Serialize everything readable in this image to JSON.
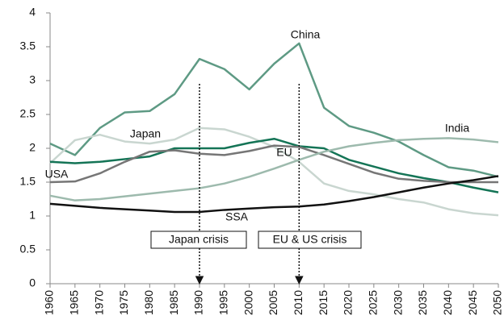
{
  "chart_data": {
    "type": "line",
    "x": [
      1960,
      1965,
      1970,
      1975,
      1980,
      1985,
      1990,
      1995,
      2000,
      2005,
      2010,
      2015,
      2020,
      2025,
      2030,
      2035,
      2040,
      2045,
      2050
    ],
    "xlim": [
      1960,
      2050
    ],
    "xticks": [
      1960,
      1965,
      1970,
      1975,
      1980,
      1985,
      1990,
      1995,
      2000,
      2005,
      2010,
      2015,
      2020,
      2025,
      2030,
      2035,
      2040,
      2045,
      2050
    ],
    "ylim": [
      0,
      4
    ],
    "yticks": [
      0,
      0.5,
      1,
      1.5,
      2,
      2.5,
      3,
      3.5,
      4
    ],
    "series": [
      {
        "name": "China",
        "color": "#5e9a84",
        "values": [
          2.07,
          1.9,
          2.3,
          2.53,
          2.55,
          2.8,
          3.32,
          3.17,
          2.87,
          3.25,
          3.55,
          2.6,
          2.33,
          2.23,
          2.1,
          1.9,
          1.72,
          1.67,
          1.58
        ]
      },
      {
        "name": "Japan",
        "color": "#c9d6d0",
        "values": [
          1.78,
          2.12,
          2.2,
          2.1,
          2.07,
          2.13,
          2.3,
          2.28,
          2.17,
          2.02,
          1.8,
          1.48,
          1.37,
          1.32,
          1.25,
          1.2,
          1.1,
          1.04,
          1.01
        ]
      },
      {
        "name": "EU",
        "color": "#147456",
        "values": [
          1.8,
          1.78,
          1.8,
          1.84,
          1.88,
          2.0,
          2.0,
          2.0,
          2.08,
          2.14,
          2.03,
          2.0,
          1.83,
          1.73,
          1.63,
          1.56,
          1.5,
          1.42,
          1.35
        ]
      },
      {
        "name": "USA",
        "color": "#767676",
        "values": [
          1.5,
          1.51,
          1.63,
          1.8,
          1.95,
          1.97,
          1.92,
          1.9,
          1.96,
          2.04,
          2.02,
          1.9,
          1.77,
          1.64,
          1.55,
          1.52,
          1.5,
          1.5,
          1.5
        ]
      },
      {
        "name": "India",
        "color": "#9dbaad",
        "values": [
          1.3,
          1.23,
          1.25,
          1.29,
          1.33,
          1.37,
          1.41,
          1.48,
          1.58,
          1.7,
          1.83,
          1.95,
          2.03,
          2.08,
          2.12,
          2.14,
          2.15,
          2.13,
          2.09
        ]
      },
      {
        "name": "SSA",
        "color": "#111111",
        "values": [
          1.18,
          1.15,
          1.12,
          1.1,
          1.08,
          1.06,
          1.06,
          1.09,
          1.11,
          1.13,
          1.14,
          1.17,
          1.22,
          1.28,
          1.35,
          1.42,
          1.48,
          1.53,
          1.59
        ]
      }
    ],
    "annotations": [
      {
        "text": "Japan crisis",
        "x": 1990
      },
      {
        "text": "EU & US crisis",
        "x": 2010
      }
    ]
  }
}
